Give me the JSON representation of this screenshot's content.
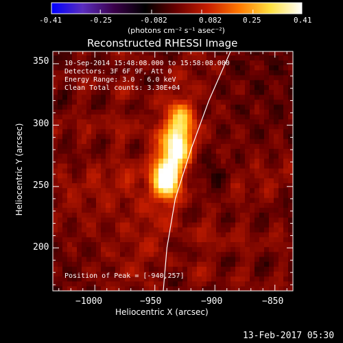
{
  "colorbar": {
    "ticks": [
      "-0.41",
      "-0.25",
      "-0.082",
      "0.082",
      "0.25",
      "0.41"
    ],
    "tick_values": [
      -0.41,
      -0.25,
      -0.082,
      0.082,
      0.25,
      0.41
    ],
    "range": [
      -0.41,
      0.41
    ],
    "units": "(photons cm⁻² s⁻¹ asec⁻²)",
    "colors": [
      "#0000ff",
      "#5a2dbe",
      "#3a004a",
      "#000000",
      "#6a0000",
      "#c81e00",
      "#ff7800",
      "#ffe040",
      "#ffffff"
    ]
  },
  "title": "Reconstructed RHESSI Image",
  "annotations": {
    "time": "10-Sep-2014 15:48:08.000 to 15:58:08.000",
    "detectors": "Detectors: 3F 6F 9F, Att 0",
    "energy": "Energy Range: 3.0 - 6.0 keV",
    "clean": "Clean     Total counts: 3.30E+04",
    "peak": "Position of Peak = [-940,257]"
  },
  "footer": {
    "timestamp": "13-Feb-2017 05:30"
  },
  "chart_data": {
    "type": "heatmap",
    "title": "Reconstructed RHESSI Image",
    "xlabel": "Heliocentric X (arcsec)",
    "ylabel": "Heliocentric Y (arcsec)",
    "xlim": [
      -1035,
      -835
    ],
    "ylim": [
      165,
      360
    ],
    "xticks": [
      -1000,
      -950,
      -900,
      -850
    ],
    "xtick_labels": [
      "−1000",
      "−950",
      "−900",
      "−850"
    ],
    "yticks": [
      200,
      250,
      300,
      350
    ],
    "ytick_labels": [
      "200",
      "250",
      "300",
      "350"
    ],
    "peak_position": [
      -940,
      257
    ],
    "sources": [
      {
        "x": -940,
        "y": 257,
        "peak": 0.41
      },
      {
        "x": -932,
        "y": 280,
        "peak": 0.36
      },
      {
        "x": -928,
        "y": 302,
        "peak": 0.26
      }
    ],
    "limb_curve": [
      [
        -943,
        165
      ],
      [
        -940,
        200
      ],
      [
        -933,
        240
      ],
      [
        -920,
        280
      ],
      [
        -905,
        320
      ],
      [
        -887,
        360
      ]
    ]
  }
}
